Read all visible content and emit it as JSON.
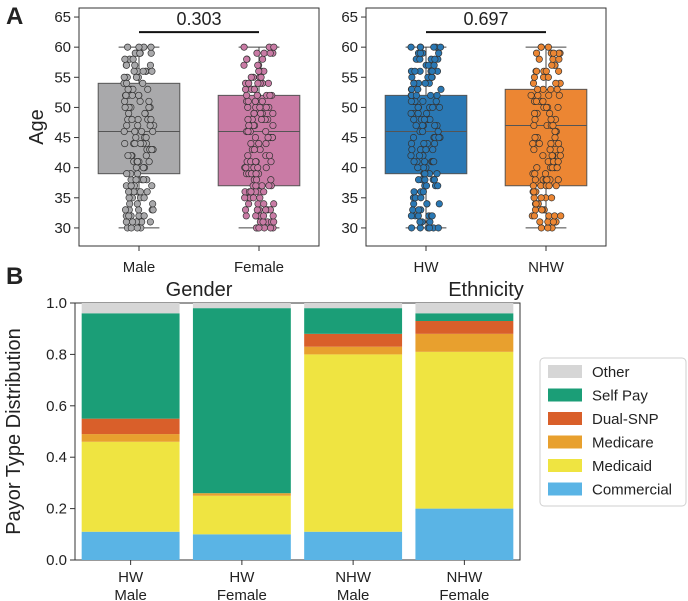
{
  "panel_labels": {
    "a": "A",
    "b": "B"
  },
  "chart_data": [
    {
      "type": "box",
      "panel": "A-left",
      "xlabel": "Gender",
      "ylabel": "Age",
      "ylim": [
        27,
        66.5
      ],
      "yticks": [
        30,
        35,
        40,
        45,
        50,
        55,
        60,
        65
      ],
      "categories": [
        "Male",
        "Female"
      ],
      "colors": [
        "#a9a9ab",
        "#c97ba5"
      ],
      "boxes": [
        {
          "min": 30,
          "q1": 39,
          "median": 46,
          "q3": 54,
          "max": 60
        },
        {
          "min": 30,
          "q1": 37,
          "median": 46,
          "q3": 52,
          "max": 60
        }
      ],
      "p_value": "0.303"
    },
    {
      "type": "box",
      "panel": "A-right",
      "xlabel": "Ethnicity",
      "ylabel": "",
      "ylim": [
        27,
        66.5
      ],
      "yticks": [
        30,
        35,
        40,
        45,
        50,
        55,
        60,
        65
      ],
      "categories": [
        "HW",
        "NHW"
      ],
      "colors": [
        "#2a78b4",
        "#ec8633"
      ],
      "boxes": [
        {
          "min": 30,
          "q1": 39,
          "median": 46,
          "q3": 52,
          "max": 60
        },
        {
          "min": 30,
          "q1": 37,
          "median": 47,
          "q3": 53,
          "max": 60
        }
      ],
      "p_value": "0.697"
    },
    {
      "type": "bar",
      "stacked": true,
      "panel": "B",
      "xlabel": "",
      "ylabel": "Payor Type Distribution",
      "ylim": [
        0,
        1.0
      ],
      "yticks": [
        "0.0",
        "0.2",
        "0.4",
        "0.6",
        "0.8",
        "1.0"
      ],
      "categories": [
        {
          "line1": "HW",
          "line2": "Male"
        },
        {
          "line1": "HW",
          "line2": "Female"
        },
        {
          "line1": "NHW",
          "line2": "Male"
        },
        {
          "line1": "NHW",
          "line2": "Female"
        }
      ],
      "series": [
        {
          "name": "Commercial",
          "color": "#5ab4e5",
          "values": [
            0.11,
            0.1,
            0.11,
            0.2
          ]
        },
        {
          "name": "Medicaid",
          "color": "#efe441",
          "values": [
            0.35,
            0.15,
            0.69,
            0.61
          ]
        },
        {
          "name": "Medicare",
          "color": "#e8a02e",
          "values": [
            0.03,
            0.01,
            0.03,
            0.07
          ]
        },
        {
          "name": "Dual-SNP",
          "color": "#d95f2a",
          "values": [
            0.06,
            0.0,
            0.05,
            0.05
          ]
        },
        {
          "name": "Self Pay",
          "color": "#1b9e77",
          "values": [
            0.41,
            0.72,
            0.1,
            0.03
          ]
        },
        {
          "name": "Other",
          "color": "#d6d6d6",
          "values": [
            0.04,
            0.02,
            0.02,
            0.04
          ]
        }
      ],
      "legend_position": "right"
    }
  ]
}
